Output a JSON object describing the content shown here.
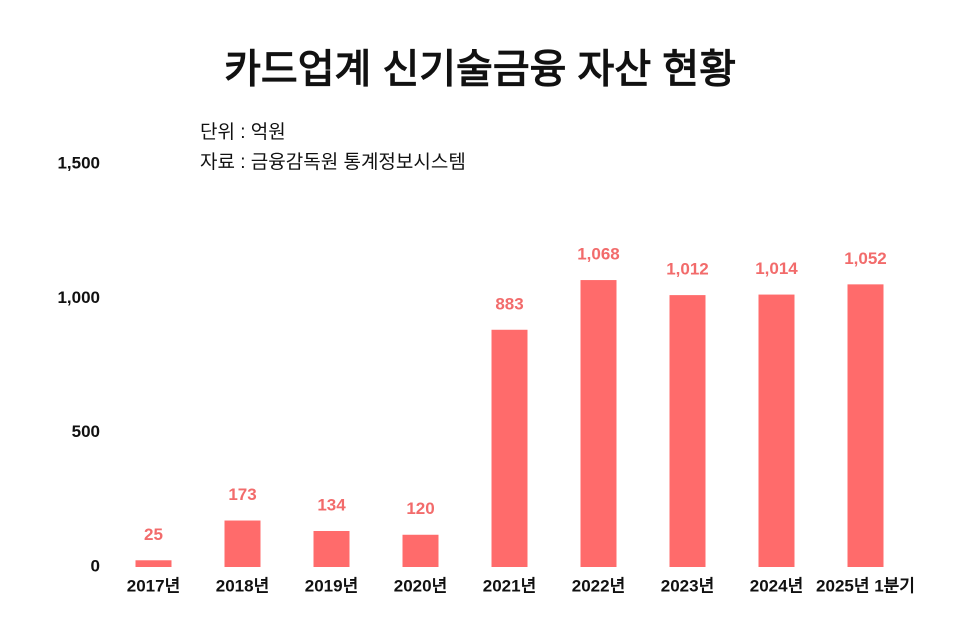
{
  "chart_data": {
    "type": "bar",
    "title": "카드업계 신기술금융 자산 현황",
    "notes": [
      "단위 : 억원",
      "자료 : 금융감독원 통계정보시스템"
    ],
    "categories": [
      "2017년",
      "2018년",
      "2019년",
      "2020년",
      "2021년",
      "2022년",
      "2023년",
      "2024년",
      "2025년 1분기"
    ],
    "values": [
      25,
      173,
      134,
      120,
      883,
      1068,
      1012,
      1014,
      1052
    ],
    "value_labels": [
      "25",
      "173",
      "134",
      "120",
      "883",
      "1,068",
      "1,012",
      "1,014",
      "1,052"
    ],
    "color": "#ff6b6b",
    "ylim": [
      0,
      1500
    ],
    "yticks": [
      0,
      500,
      {
        "value": 1000,
        "label": "1,000"
      },
      {
        "value": 1500,
        "label": "1,500"
      }
    ],
    "grid": false
  }
}
